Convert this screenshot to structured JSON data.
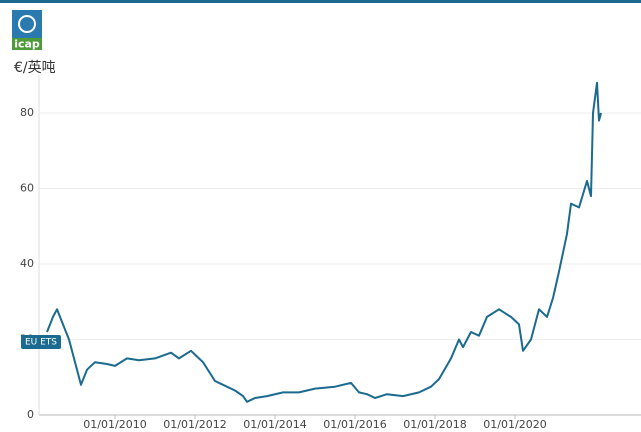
{
  "chart_data": {
    "type": "line",
    "logo_text": "icap",
    "y_label": "€/英吨",
    "series": [
      {
        "name": "EU ETS",
        "color": "#1b6a8f",
        "x": [
          2008.3,
          2008.45,
          2008.55,
          2008.7,
          2008.85,
          2008.95,
          2009.1,
          2009.15,
          2009.3,
          2009.5,
          2009.8,
          2010.0,
          2010.3,
          2010.6,
          2011.0,
          2011.4,
          2011.6,
          2011.9,
          2012.0,
          2012.2,
          2012.5,
          2012.7,
          2013.0,
          2013.2,
          2013.3,
          2013.5,
          2013.8,
          2014.2,
          2014.6,
          2015.0,
          2015.5,
          2015.9,
          2016.1,
          2016.3,
          2016.5,
          2016.8,
          2017.2,
          2017.6,
          2017.9,
          2018.1,
          2018.4,
          2018.6,
          2018.7,
          2018.9,
          2019.1,
          2019.3,
          2019.6,
          2019.9,
          2020.1,
          2020.2,
          2020.4,
          2020.6,
          2020.8,
          2020.95,
          2021.1,
          2021.3,
          2021.4,
          2021.6,
          2021.8,
          2021.9,
          2021.95,
          2022.05,
          2022.1,
          2022.15
        ],
        "values": [
          22,
          26,
          28,
          24,
          20,
          16,
          10,
          8,
          12,
          14,
          13.5,
          13,
          15,
          14.5,
          15,
          16.5,
          15,
          17,
          16,
          14,
          9,
          8,
          6.5,
          5,
          3.5,
          4.5,
          5,
          6,
          6,
          7,
          7.5,
          8.5,
          6,
          5.5,
          4.5,
          5.5,
          5,
          6,
          7.5,
          9.5,
          15,
          20,
          18,
          22,
          21,
          26,
          28,
          26,
          24,
          17,
          20,
          28,
          26,
          31,
          38,
          48,
          56,
          55,
          62,
          58,
          80,
          88,
          78,
          80
        ]
      }
    ],
    "xlim": [
      2008.1,
      2023.15
    ],
    "xticks": [
      {
        "value": 2010,
        "label": "01/01/2010"
      },
      {
        "value": 2012,
        "label": "01/01/2012"
      },
      {
        "value": 2014,
        "label": "01/01/2014"
      },
      {
        "value": 2016,
        "label": "01/01/2016"
      },
      {
        "value": 2018,
        "label": "01/01/2018"
      },
      {
        "value": 2020,
        "label": "01/01/2020"
      }
    ],
    "ylim": [
      0,
      90
    ],
    "yticks": [
      0,
      20,
      40,
      60,
      80
    ],
    "grid": true
  }
}
